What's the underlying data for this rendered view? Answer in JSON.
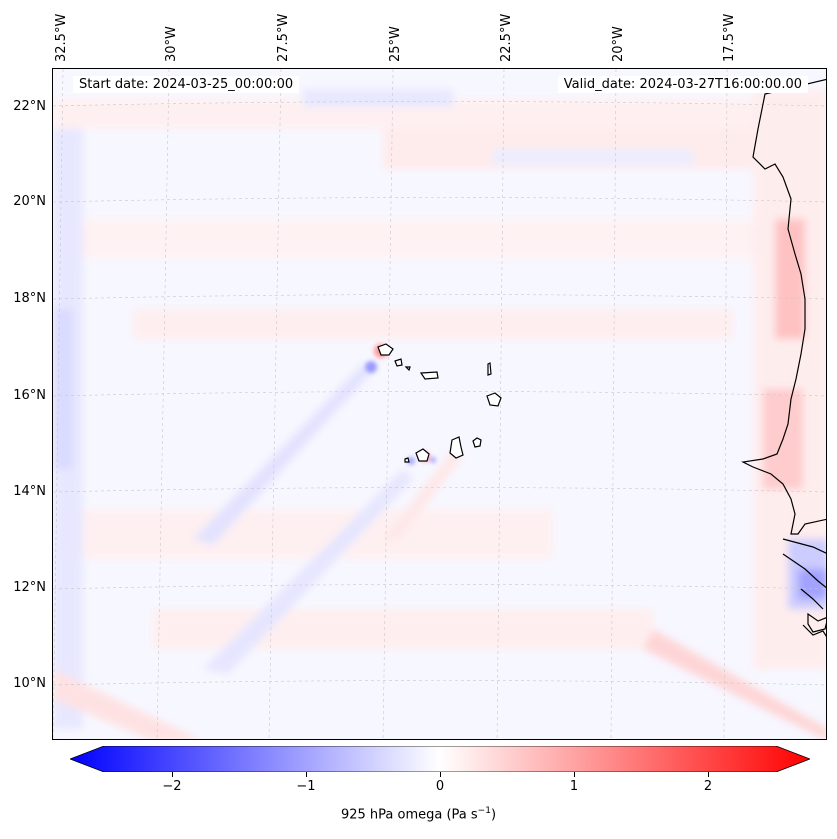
{
  "map": {
    "start_date": "Start date: 2024-03-25_00:00:00",
    "valid_date": "Valid_date: 2024-03-27T16:00:00.00",
    "lon_labels": [
      "32.5°W",
      "30°W",
      "27.5°W",
      "25°W",
      "22.5°W",
      "20°W",
      "17.5°W"
    ],
    "lat_labels": [
      "22°N",
      "20°N",
      "18°N",
      "16°N",
      "14°N",
      "12°N",
      "10°N"
    ]
  },
  "colorbar": {
    "label": "925 hPa omega (Pa s",
    "label_sup": "−1",
    "label_close": ")",
    "ticks": [
      "−2",
      "−1",
      "0",
      "1",
      "2"
    ],
    "range": [
      -2.75,
      2.75
    ],
    "colormap": "bwr",
    "colors": {
      "low": "#0000ff",
      "mid": "#ffffff",
      "high": "#ff0000"
    }
  }
}
